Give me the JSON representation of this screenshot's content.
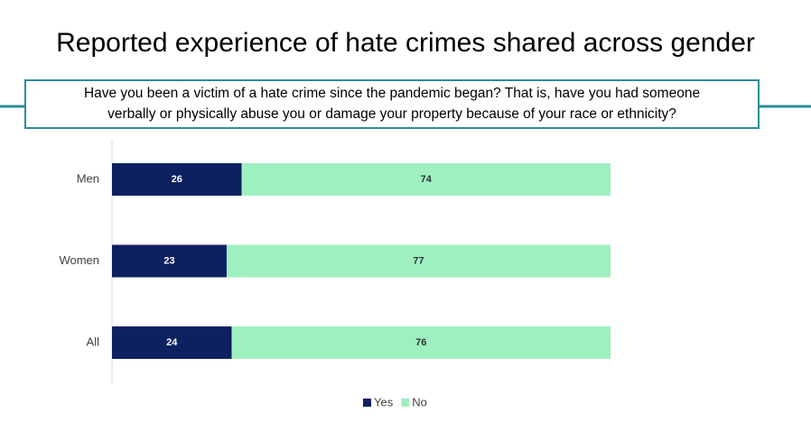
{
  "chart_data": {
    "type": "stacked_bar_horizontal",
    "title": "Reported experience of hate crimes shared across gender",
    "subtitle": [
      "Have you been a victim of a hate crime since the pandemic began? That is, have you had someone",
      "verbally or physically abuse you or damage your property because of your race or ethnicity?"
    ],
    "categories": [
      "Men",
      "Women",
      "All"
    ],
    "series": [
      {
        "name": "Yes",
        "color": "#0d2160",
        "values": [
          26,
          23,
          24
        ]
      },
      {
        "name": "No",
        "color": "#9ef0c0",
        "values": [
          74,
          77,
          76
        ]
      }
    ],
    "xlim": [
      0,
      100
    ],
    "legend": "bottom"
  }
}
